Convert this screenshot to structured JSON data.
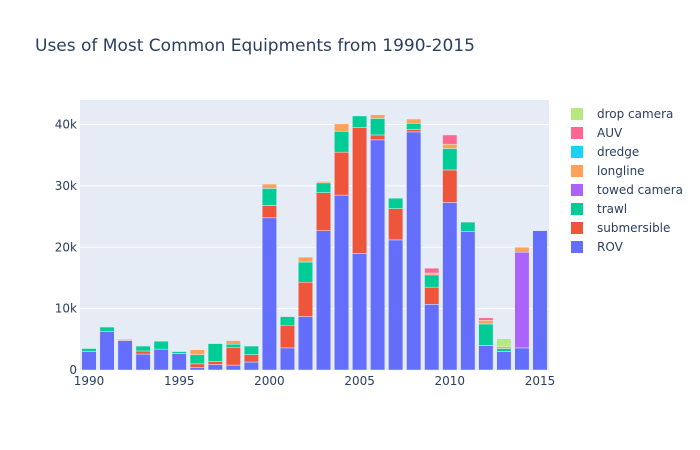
{
  "chart_data": {
    "type": "bar",
    "stacked": true,
    "title": "Uses of Most Common Equipments from 1990-2015",
    "xlabel": "",
    "ylabel": "",
    "xlim": [
      1989.5,
      2015.5
    ],
    "ylim": [
      0,
      44000
    ],
    "x_ticks": [
      1990,
      1995,
      2000,
      2005,
      2010,
      2015
    ],
    "y_ticks": [
      {
        "value": 0,
        "label": "0"
      },
      {
        "value": 10000,
        "label": "10k"
      },
      {
        "value": 20000,
        "label": "20k"
      },
      {
        "value": 30000,
        "label": "30k"
      },
      {
        "value": 40000,
        "label": "40k"
      }
    ],
    "legend_position": "right",
    "categories": [
      1990,
      1991,
      1992,
      1993,
      1994,
      1995,
      1996,
      1997,
      1998,
      1999,
      2000,
      2001,
      2002,
      2003,
      2004,
      2005,
      2006,
      2007,
      2008,
      2009,
      2010,
      2011,
      2012,
      2013,
      2014,
      2015
    ],
    "series": [
      {
        "name": "ROV",
        "color": "#636efa",
        "values": [
          3000,
          6300,
          4800,
          2600,
          3400,
          2700,
          400,
          900,
          800,
          1300,
          24800,
          3600,
          8700,
          22700,
          28500,
          19000,
          37500,
          21200,
          38800,
          10700,
          27300,
          22600,
          4000,
          3000,
          3600,
          22700
        ]
      },
      {
        "name": "submersible",
        "color": "#ef553b",
        "values": [
          0,
          0,
          0,
          500,
          0,
          0,
          600,
          500,
          2900,
          1200,
          2000,
          3700,
          5600,
          6200,
          7000,
          20500,
          800,
          5100,
          400,
          2800,
          5300,
          0,
          0,
          0,
          0,
          0
        ]
      },
      {
        "name": "trawl",
        "color": "#00cc96",
        "values": [
          500,
          700,
          0,
          800,
          1300,
          300,
          1500,
          2900,
          500,
          1400,
          2800,
          1400,
          3300,
          1600,
          3400,
          1900,
          2700,
          1700,
          1000,
          2000,
          3500,
          1500,
          3500,
          500,
          0,
          0
        ]
      },
      {
        "name": "towed camera",
        "color": "#ab63fa",
        "values": [
          0,
          0,
          0,
          0,
          0,
          0,
          0,
          0,
          0,
          0,
          0,
          0,
          0,
          0,
          0,
          0,
          0,
          0,
          0,
          0,
          0,
          0,
          0,
          0,
          15600,
          0
        ]
      },
      {
        "name": "longline",
        "color": "#ffa15a",
        "values": [
          0,
          0,
          200,
          0,
          0,
          0,
          800,
          0,
          600,
          0,
          700,
          0,
          800,
          200,
          1200,
          0,
          600,
          0,
          700,
          300,
          700,
          0,
          600,
          300,
          800,
          0
        ]
      },
      {
        "name": "dredge",
        "color": "#19d3f3",
        "values": [
          0,
          0,
          0,
          0,
          0,
          0,
          0,
          0,
          0,
          0,
          0,
          0,
          0,
          100,
          0,
          0,
          0,
          0,
          0,
          0,
          0,
          0,
          0,
          0,
          0,
          0
        ]
      },
      {
        "name": "AUV",
        "color": "#ff6692",
        "values": [
          0,
          0,
          0,
          0,
          0,
          0,
          0,
          0,
          0,
          0,
          0,
          0,
          0,
          0,
          0,
          0,
          0,
          0,
          0,
          800,
          1500,
          0,
          400,
          0,
          0,
          0
        ]
      },
      {
        "name": "drop camera",
        "color": "#b6e880",
        "values": [
          0,
          0,
          0,
          0,
          0,
          0,
          0,
          0,
          0,
          0,
          0,
          0,
          0,
          0,
          0,
          0,
          0,
          0,
          0,
          0,
          0,
          0,
          0,
          1300,
          0,
          0
        ]
      }
    ]
  }
}
